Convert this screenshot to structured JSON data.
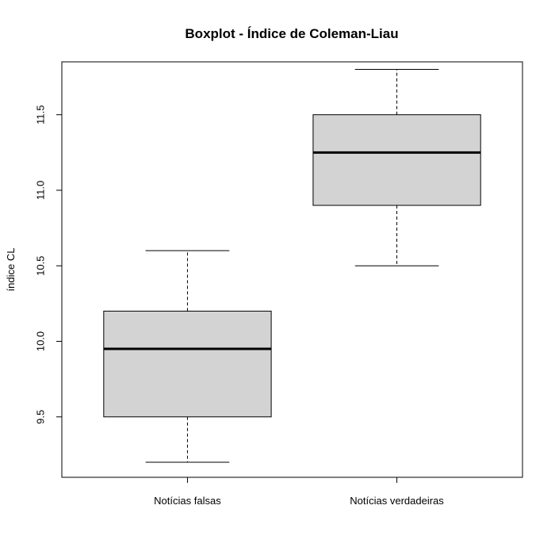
{
  "chart_data": {
    "type": "boxplot",
    "title": "Boxplot - Índice de Coleman-Liau",
    "xlabel": "",
    "ylabel": "índice CL",
    "ylim": [
      9.1,
      11.85
    ],
    "yticks": [
      9.5,
      10.0,
      10.5,
      11.0,
      11.5
    ],
    "ytick_labels": [
      "9.5",
      "10.0",
      "10.5",
      "11.0",
      "11.5"
    ],
    "grid": false,
    "categories": [
      "Notícias falsas",
      "Notícias verdadeiras"
    ],
    "boxes": [
      {
        "category": "Notícias falsas",
        "whisker_low": 9.2,
        "q1": 9.5,
        "median": 9.95,
        "q3": 10.2,
        "whisker_high": 10.6
      },
      {
        "category": "Notícias verdadeiras",
        "whisker_low": 10.5,
        "q1": 10.9,
        "median": 11.25,
        "q3": 11.5,
        "whisker_high": 11.8
      }
    ],
    "box_fill": "#d3d3d3",
    "line_color": "#000000"
  }
}
